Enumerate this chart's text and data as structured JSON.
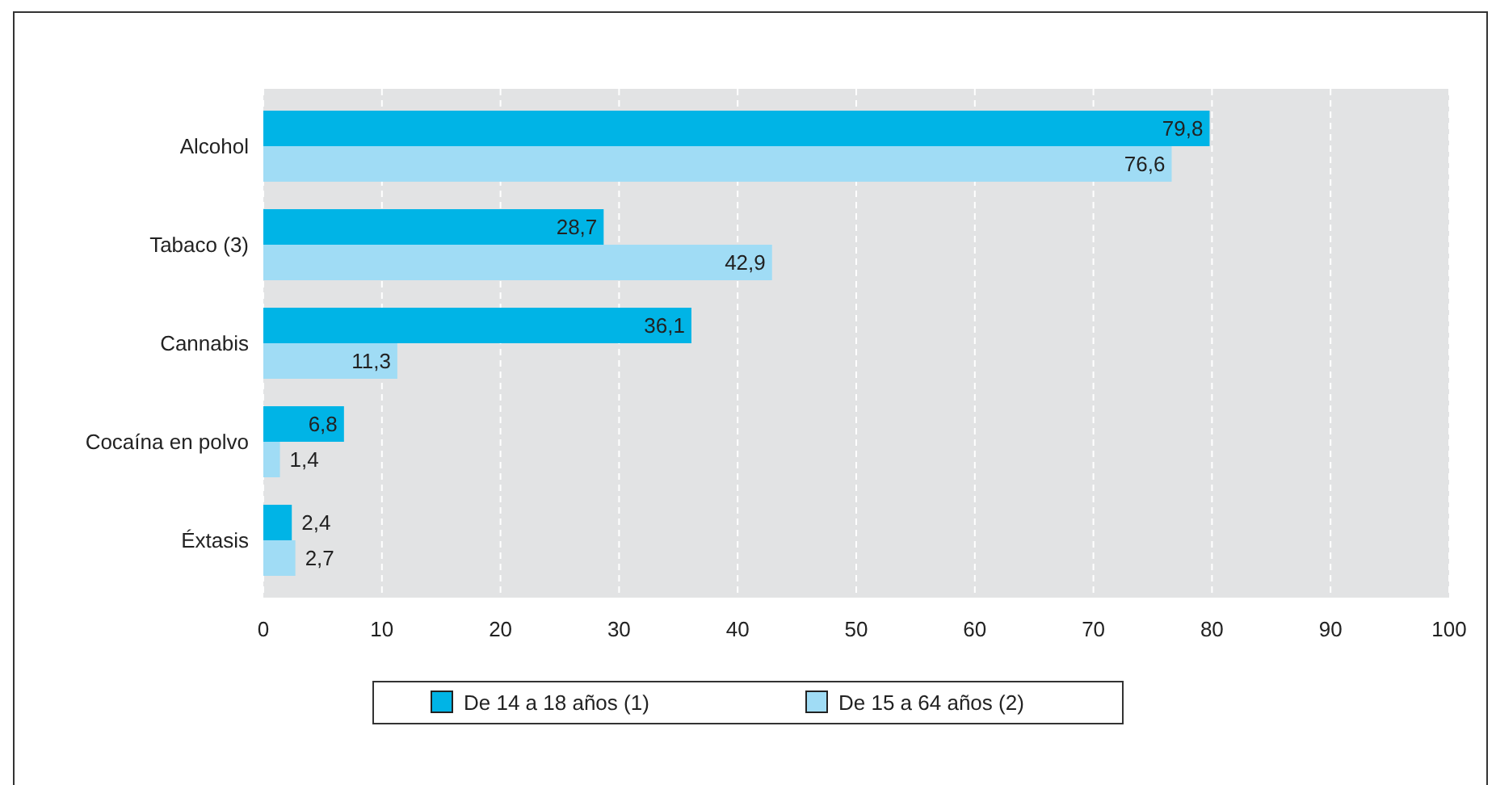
{
  "chart_data": {
    "type": "bar",
    "orientation": "horizontal",
    "categories": [
      "Alcohol",
      "Tabaco (3)",
      "Cannabis",
      "Cocaína en polvo",
      "Éxtasis"
    ],
    "series": [
      {
        "name": "De 14 a 18 años (1)",
        "color": "#00b4e6",
        "values": [
          79.8,
          28.7,
          36.1,
          6.8,
          2.4
        ],
        "value_labels": [
          "79,8",
          "28,7",
          "36,1",
          "6,8",
          "2,4"
        ]
      },
      {
        "name": "De 15 a 64 años (2)",
        "color": "#a0dcf5",
        "values": [
          76.6,
          42.9,
          11.3,
          1.4,
          2.7
        ],
        "value_labels": [
          "76,6",
          "42,9",
          "11,3",
          "1,4",
          "2,7"
        ]
      }
    ],
    "xlim": [
      0,
      100
    ],
    "xticks": [
      0,
      10,
      20,
      30,
      40,
      50,
      60,
      70,
      80,
      90,
      100
    ],
    "grid": "x",
    "legend": "bottom"
  }
}
